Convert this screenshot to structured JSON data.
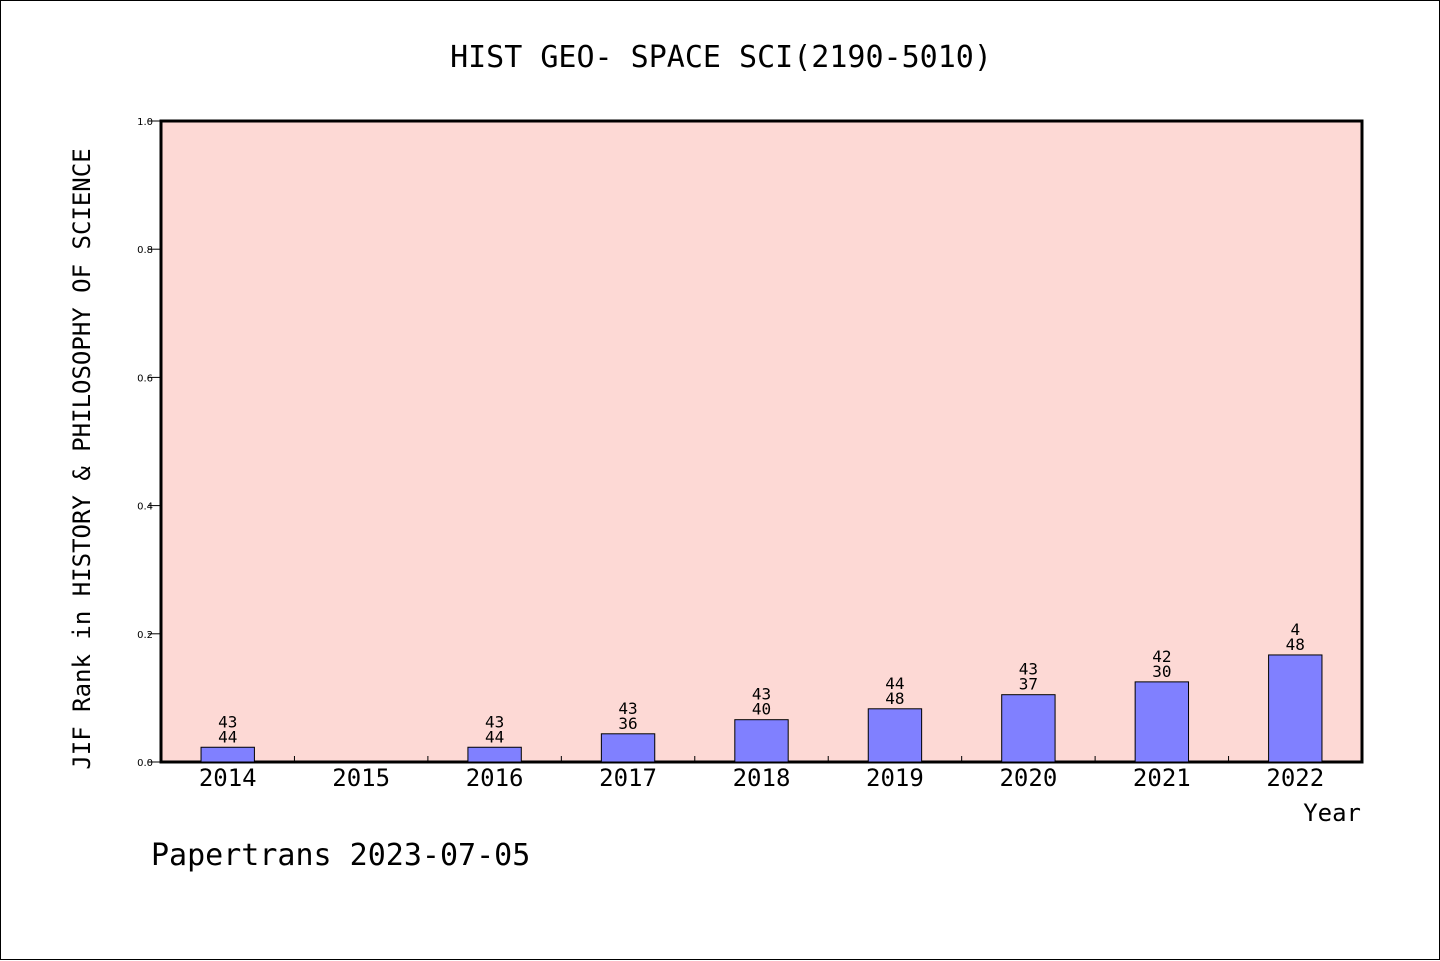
{
  "chart_data": {
    "type": "bar",
    "title": "HIST GEO- SPACE SCI(2190-5010)",
    "xlabel": "Year",
    "ylabel": "JIF Rank in HISTORY & PHILOSOPHY OF SCIENCE",
    "ylim": [
      0,
      1.0
    ],
    "yticks": [
      "0.0",
      "0.2",
      "0.4",
      "0.6",
      "0.8",
      "1.0"
    ],
    "categories": [
      "2014",
      "2015",
      "2016",
      "2017",
      "2018",
      "2019",
      "2020",
      "2021",
      "2022"
    ],
    "values": [
      0.023,
      null,
      0.023,
      0.044,
      0.066,
      0.083,
      0.105,
      0.125,
      0.167
    ],
    "rank": [
      "43",
      null,
      "43",
      "43",
      "43",
      "44",
      "43",
      "42",
      "4"
    ],
    "total": [
      "44",
      null,
      "44",
      "36",
      "40",
      "48",
      "37",
      "30",
      "48"
    ],
    "grid": false,
    "colors": {
      "background": "#fdd9d5",
      "bar": "#8080ff",
      "axis": "#000000"
    }
  },
  "footer": "Papertrans 2023-07-05"
}
